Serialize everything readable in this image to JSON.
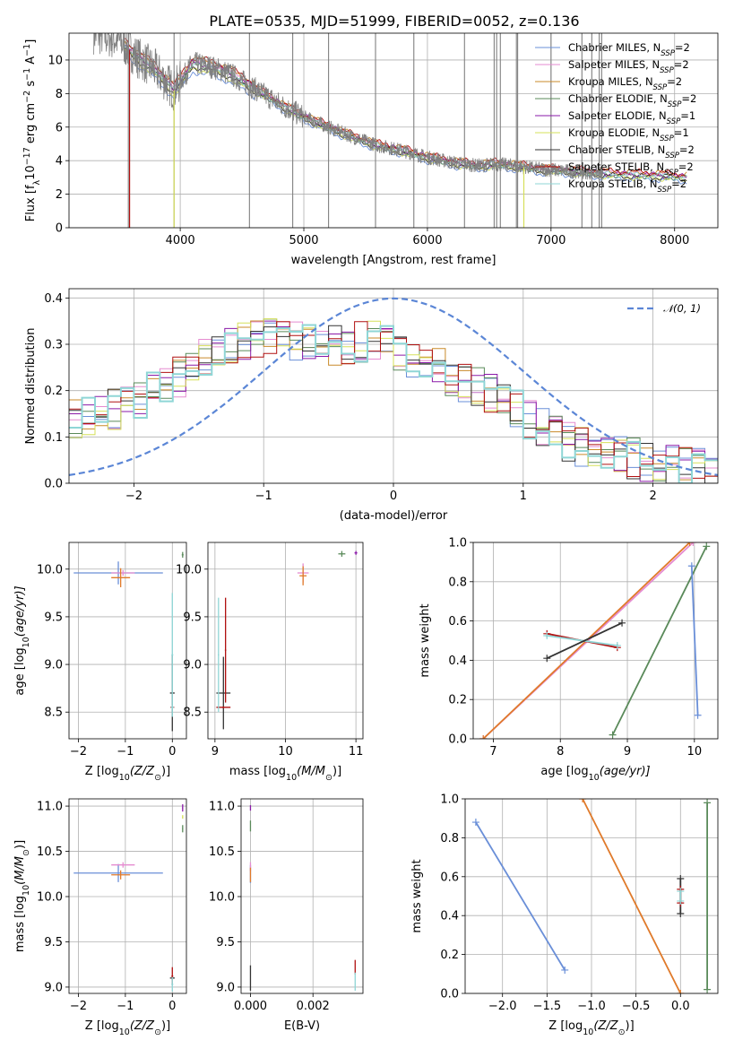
{
  "colors": {
    "chabrier_miles": "#6a8fd8",
    "salpeter_miles": "#e58bd0",
    "kroupa_miles": "#c98a2a",
    "chabrier_elodie": "#5a8a5a",
    "salpeter_elodie": "#8a1aa8",
    "kroupa_elodie": "#d6e05a",
    "chabrier_stelib": "#333333",
    "salpeter_stelib": "#b01010",
    "kroupa_stelib": "#8fd6d6",
    "data": "#808080",
    "gauss": "#5b86d6",
    "orange": "#e07a2a"
  },
  "chart_data": [
    {
      "type": "line",
      "title": "PLATE=0535, MJD=51999, FIBERID=0052, z=0.136",
      "xlabel": "wavelength [Angstrom, rest frame]",
      "ylabel": "Flux [f",
      "ylabel_parts": [
        "Flux [f",
        "λ",
        "10",
        "−17",
        " erg cm",
        "−2",
        " s",
        "−1",
        " A",
        "−1",
        "]"
      ],
      "xlim": [
        3100,
        8350
      ],
      "ylim": [
        0,
        11.6
      ],
      "xticks": [
        "4000",
        "5000",
        "6000",
        "7000",
        "8000"
      ],
      "yticks": [
        "0",
        "2",
        "4",
        "6",
        "8",
        "10"
      ],
      "legend_position": "top-right",
      "legend": [
        {
          "model": "Chabrier MILES, N",
          "sub": "SSP",
          "val": "=2",
          "color_key": "chabrier_miles"
        },
        {
          "model": "Salpeter MILES, N",
          "sub": "SSP",
          "val": "=2",
          "color_key": "salpeter_miles"
        },
        {
          "model": "Kroupa MILES, N",
          "sub": "SSP",
          "val": "=2",
          "color_key": "kroupa_miles"
        },
        {
          "model": "Chabrier ELODIE, N",
          "sub": "SSP",
          "val": "=2",
          "color_key": "chabrier_elodie"
        },
        {
          "model": "Salpeter ELODIE, N",
          "sub": "SSP",
          "val": "=1",
          "color_key": "salpeter_elodie"
        },
        {
          "model": "Kroupa ELODIE, N",
          "sub": "SSP",
          "val": "=1",
          "color_key": "kroupa_elodie"
        },
        {
          "model": "Chabrier STELIB, N",
          "sub": "SSP",
          "val": "=2",
          "color_key": "chabrier_stelib"
        },
        {
          "model": "Salpeter STELIB, N",
          "sub": "SSP",
          "val": "=2",
          "color_key": "salpeter_stelib"
        },
        {
          "model": "Kroupa STELIB, N",
          "sub": "SSP",
          "val": "=2",
          "color_key": "kroupa_stelib"
        }
      ],
      "continuum": [
        [
          3300,
          11.6
        ],
        [
          3500,
          11.2
        ],
        [
          3650,
          10.2
        ],
        [
          3800,
          9.4
        ],
        [
          3950,
          8.2
        ],
        [
          4100,
          9.8
        ],
        [
          4250,
          9.6
        ],
        [
          4400,
          9.2
        ],
        [
          4600,
          8.3
        ],
        [
          4800,
          7.4
        ],
        [
          5000,
          6.6
        ],
        [
          5200,
          6.0
        ],
        [
          5400,
          5.4
        ],
        [
          5600,
          4.9
        ],
        [
          5800,
          4.6
        ],
        [
          6000,
          4.2
        ],
        [
          6200,
          3.9
        ],
        [
          6400,
          3.7
        ],
        [
          6550,
          3.8
        ],
        [
          6700,
          3.7
        ],
        [
          6900,
          3.5
        ],
        [
          7100,
          3.4
        ],
        [
          7300,
          3.3
        ],
        [
          7500,
          3.2
        ],
        [
          7700,
          3.15
        ],
        [
          7900,
          3.1
        ],
        [
          8100,
          3.0
        ]
      ],
      "data_range": [
        3300,
        7420
      ],
      "model_range": [
        3550,
        8100
      ],
      "spikes": [
        3580,
        3950,
        4560,
        4910,
        5200,
        5580,
        5890,
        6300,
        6540,
        6560,
        6590,
        6720,
        6730,
        7000,
        7250,
        7330,
        7390,
        7410
      ],
      "drop_lines": [
        {
          "x": 3590,
          "color_key": "salpeter_stelib"
        },
        {
          "x": 3950,
          "color_key": "kroupa_elodie"
        },
        {
          "x": 6780,
          "color_key": "kroupa_elodie"
        }
      ]
    },
    {
      "type": "line",
      "xlabel": "(data-model)/error",
      "ylabel": "Normed distribution",
      "xlim": [
        -2.5,
        2.5
      ],
      "ylim": [
        0,
        0.42
      ],
      "xticks": [
        "−2",
        "−1",
        "0",
        "1",
        "2"
      ],
      "yticks": [
        "0.0",
        "0.1",
        "0.2",
        "0.3",
        "0.4"
      ],
      "legend_position": "top-right",
      "legend": [
        {
          "label": "𝒩(0, 1)",
          "color_key": "gauss"
        }
      ],
      "envelope": [
        [
          -2.5,
          0.14
        ],
        [
          -2.0,
          0.17
        ],
        [
          -1.6,
          0.24
        ],
        [
          -1.3,
          0.3
        ],
        [
          -1.0,
          0.32
        ],
        [
          -0.7,
          0.3
        ],
        [
          -0.4,
          0.3
        ],
        [
          -0.1,
          0.31
        ],
        [
          0.1,
          0.28
        ],
        [
          0.4,
          0.24
        ],
        [
          0.7,
          0.2
        ],
        [
          1.0,
          0.15
        ],
        [
          1.3,
          0.09
        ],
        [
          1.6,
          0.07
        ],
        [
          1.9,
          0.05
        ],
        [
          2.2,
          0.035
        ],
        [
          2.5,
          0.025
        ]
      ]
    },
    {
      "type": "scatter",
      "xlabel": "Z [log",
      "xlabel_parts": [
        "Z [log",
        "10",
        "(Z/Z",
        "⊙",
        ")]"
      ],
      "ylabel_parts": [
        "age  [log",
        "10",
        "(age/yr)]"
      ],
      "xlim": [
        -2.2,
        0.3
      ],
      "ylim": [
        8.22,
        10.28
      ],
      "xticks": [
        "−2",
        "−1",
        "0"
      ],
      "yticks": [
        "8.5",
        "9.0",
        "9.5",
        "10.0"
      ],
      "points": [
        {
          "x": -1.15,
          "y": 9.96,
          "xerr": 0.95,
          "yerr": 0.12,
          "color_key": "chabrier_miles"
        },
        {
          "x": -1.05,
          "y": 9.96,
          "xerr": 0.25,
          "yerr": 0.03,
          "color_key": "salpeter_miles"
        },
        {
          "x": -1.1,
          "y": 9.91,
          "xerr": 0.2,
          "yerr": 0.1,
          "color_key": "orange"
        },
        {
          "x": 0.0,
          "y": 8.7,
          "xerr": 0.05,
          "yerr": 0.4,
          "color_key": "chabrier_stelib"
        },
        {
          "x": 0.0,
          "y": 8.55,
          "xerr": 0.04,
          "yerr": 0.02,
          "color_key": "salpeter_stelib"
        },
        {
          "x": 0.0,
          "y": 9.1,
          "xerr": 0.02,
          "yerr": 0.65,
          "color_key": "kroupa_stelib"
        },
        {
          "x": 0.0,
          "y": 8.55,
          "xerr": 0.03,
          "yerr": 0.02,
          "color_key": "kroupa_stelib"
        },
        {
          "x": 0.22,
          "y": 10.15,
          "xerr": 0.02,
          "yerr": 0.03,
          "color_key": "chabrier_elodie"
        }
      ]
    },
    {
      "type": "scatter",
      "xlabel_parts": [
        "mass [log",
        "10",
        "(M/M",
        "⊙",
        ")]"
      ],
      "xlim": [
        8.9,
        11.1
      ],
      "ylim": [
        8.22,
        10.28
      ],
      "xticks": [
        "9",
        "10",
        "11"
      ],
      "yticks": [
        "8.5",
        "9.0",
        "9.5",
        "10.0"
      ],
      "points": [
        {
          "x": 9.12,
          "y": 8.7,
          "xerr": 0.1,
          "yerr": 0.38,
          "color_key": "chabrier_stelib"
        },
        {
          "x": 9.12,
          "y": 8.55,
          "xerr": 0.1,
          "yerr": 0.01,
          "color_key": "salpeter_stelib"
        },
        {
          "x": 9.15,
          "y": 9.15,
          "xerr": 0.01,
          "yerr": 0.55,
          "color_key": "salpeter_stelib"
        },
        {
          "x": 9.05,
          "y": 9.1,
          "xerr": 0.01,
          "yerr": 0.6,
          "color_key": "kroupa_stelib"
        },
        {
          "x": 10.25,
          "y": 9.96,
          "xerr": 0.08,
          "yerr": 0.1,
          "color_key": "salpeter_miles"
        },
        {
          "x": 10.25,
          "y": 9.93,
          "xerr": 0.05,
          "yerr": 0.1,
          "color_key": "orange"
        },
        {
          "x": 10.8,
          "y": 10.16,
          "xerr": 0.05,
          "yerr": 0.03,
          "color_key": "chabrier_elodie"
        },
        {
          "x": 11.0,
          "y": 10.17,
          "xerr": 0.02,
          "yerr": 0.02,
          "color_key": "salpeter_elodie"
        }
      ]
    },
    {
      "type": "line",
      "xlabel_parts": [
        "age  [log",
        "10",
        "(age/yr)]"
      ],
      "ylabel": "mass weight",
      "xlim": [
        6.7,
        10.35
      ],
      "ylim": [
        0,
        1
      ],
      "xticks": [
        "7",
        "8",
        "9",
        "10"
      ],
      "yticks": [
        "0.0",
        "0.2",
        "0.4",
        "0.6",
        "0.8",
        "1.0"
      ],
      "series": [
        {
          "color_key": "salpeter_miles",
          "x": [
            6.85,
            9.98
          ],
          "y": [
            0.0,
            1.0
          ]
        },
        {
          "color_key": "orange",
          "x": [
            6.85,
            9.93
          ],
          "y": [
            0.0,
            1.0
          ]
        },
        {
          "color_key": "chabrier_elodie",
          "x": [
            8.78,
            10.18
          ],
          "y": [
            0.02,
            0.98
          ]
        },
        {
          "color_key": "chabrier_miles",
          "x": [
            9.96,
            10.05
          ],
          "y": [
            0.88,
            0.12
          ]
        },
        {
          "color_key": "salpeter_stelib",
          "x": [
            7.8,
            8.85
          ],
          "y": [
            0.535,
            0.465
          ]
        },
        {
          "color_key": "kroupa_stelib",
          "x": [
            7.8,
            8.85
          ],
          "y": [
            0.525,
            0.475
          ]
        },
        {
          "color_key": "chabrier_stelib",
          "x": [
            7.8,
            8.92
          ],
          "y": [
            0.41,
            0.59
          ]
        }
      ]
    },
    {
      "type": "scatter",
      "xlabel_parts": [
        "Z [log",
        "10",
        "(Z/Z",
        "⊙",
        ")]"
      ],
      "ylabel_parts": [
        "mass [log",
        "10",
        "(M/M",
        "⊙",
        ")]"
      ],
      "xlim": [
        -2.2,
        0.3
      ],
      "ylim": [
        8.93,
        11.08
      ],
      "xticks": [
        "−2",
        "−1",
        "0"
      ],
      "yticks": [
        "9.0",
        "9.5",
        "10.0",
        "10.5",
        "11.0"
      ],
      "points": [
        {
          "x": -1.15,
          "y": 10.26,
          "xerr": 0.95,
          "yerr": 0.1,
          "color_key": "chabrier_miles"
        },
        {
          "x": -1.05,
          "y": 10.35,
          "xerr": 0.25,
          "yerr": 0.03,
          "color_key": "salpeter_miles"
        },
        {
          "x": -1.1,
          "y": 10.24,
          "xerr": 0.2,
          "yerr": 0.05,
          "color_key": "orange"
        },
        {
          "x": 0.0,
          "y": 9.1,
          "xerr": 0.05,
          "yerr": 0.02,
          "color_key": "chabrier_stelib"
        },
        {
          "x": 0.0,
          "y": 9.12,
          "xerr": 0.02,
          "yerr": 0.1,
          "color_key": "salpeter_stelib"
        },
        {
          "x": 0.0,
          "y": 9.03,
          "xerr": 0.02,
          "yerr": 0.08,
          "color_key": "kroupa_stelib"
        },
        {
          "x": 0.22,
          "y": 10.75,
          "xerr": 0.01,
          "yerr": 0.04,
          "color_key": "chabrier_elodie"
        },
        {
          "x": 0.22,
          "y": 10.98,
          "xerr": 0.01,
          "yerr": 0.04,
          "color_key": "salpeter_elodie"
        },
        {
          "x": 0.22,
          "y": 10.88,
          "xerr": 0.01,
          "yerr": 0.02,
          "color_key": "kroupa_elodie"
        }
      ]
    },
    {
      "type": "scatter",
      "xlabel": "E(B-V)",
      "xlim": [
        -0.0003,
        0.0036
      ],
      "ylim": [
        8.93,
        11.08
      ],
      "xticks": [
        "0.000",
        "0.002"
      ],
      "yticks": [
        "9.0",
        "9.5",
        "10.0",
        "10.5",
        "11.0"
      ],
      "points": [
        {
          "x": 0.0,
          "y": 10.25,
          "xerr": 0.0,
          "yerr": 0.1,
          "color_key": "chabrier_miles"
        },
        {
          "x": 0.0,
          "y": 10.33,
          "xerr": 0.0,
          "yerr": 0.05,
          "color_key": "salpeter_miles"
        },
        {
          "x": 0.0,
          "y": 10.24,
          "xerr": 0.0,
          "yerr": 0.08,
          "color_key": "orange"
        },
        {
          "x": 0.0,
          "y": 10.78,
          "xerr": 0.0,
          "yerr": 0.06,
          "color_key": "chabrier_elodie"
        },
        {
          "x": 0.0,
          "y": 10.98,
          "xerr": 0.0,
          "yerr": 0.03,
          "color_key": "salpeter_elodie"
        },
        {
          "x": 0.0,
          "y": 9.1,
          "xerr": 0.0,
          "yerr": 0.14,
          "color_key": "chabrier_stelib"
        },
        {
          "x": 0.00335,
          "y": 9.22,
          "xerr": 0.0,
          "yerr": 0.08,
          "color_key": "salpeter_stelib"
        },
        {
          "x": 0.00335,
          "y": 9.06,
          "xerr": 0.0,
          "yerr": 0.1,
          "color_key": "kroupa_stelib"
        }
      ]
    },
    {
      "type": "line",
      "xlabel_parts": [
        "Z [log",
        "10",
        "(Z/Z",
        "⊙",
        ")]"
      ],
      "ylabel": "mass weight",
      "xlim": [
        -2.42,
        0.42
      ],
      "ylim": [
        0,
        1
      ],
      "xticks": [
        "−2.0",
        "−1.5",
        "−1.0",
        "−0.5",
        "0.0"
      ],
      "yticks": [
        "0.0",
        "0.2",
        "0.4",
        "0.6",
        "0.8",
        "1.0"
      ],
      "series": [
        {
          "color_key": "chabrier_miles",
          "x": [
            -2.3,
            -1.3
          ],
          "y": [
            0.88,
            0.12
          ]
        },
        {
          "color_key": "orange",
          "x": [
            -1.1,
            0.0
          ],
          "y": [
            1.0,
            0.0
          ]
        },
        {
          "color_key": "chabrier_elodie",
          "x": [
            0.3,
            0.3
          ],
          "y": [
            0.02,
            0.98
          ]
        },
        {
          "color_key": "chabrier_stelib",
          "x": [
            0.0,
            0.0
          ],
          "y": [
            0.41,
            0.59
          ]
        },
        {
          "color_key": "salpeter_stelib",
          "x": [
            0.0,
            0.0
          ],
          "y": [
            0.465,
            0.535
          ]
        },
        {
          "color_key": "kroupa_stelib",
          "x": [
            0.0,
            0.0
          ],
          "y": [
            0.475,
            0.525
          ]
        }
      ]
    }
  ]
}
